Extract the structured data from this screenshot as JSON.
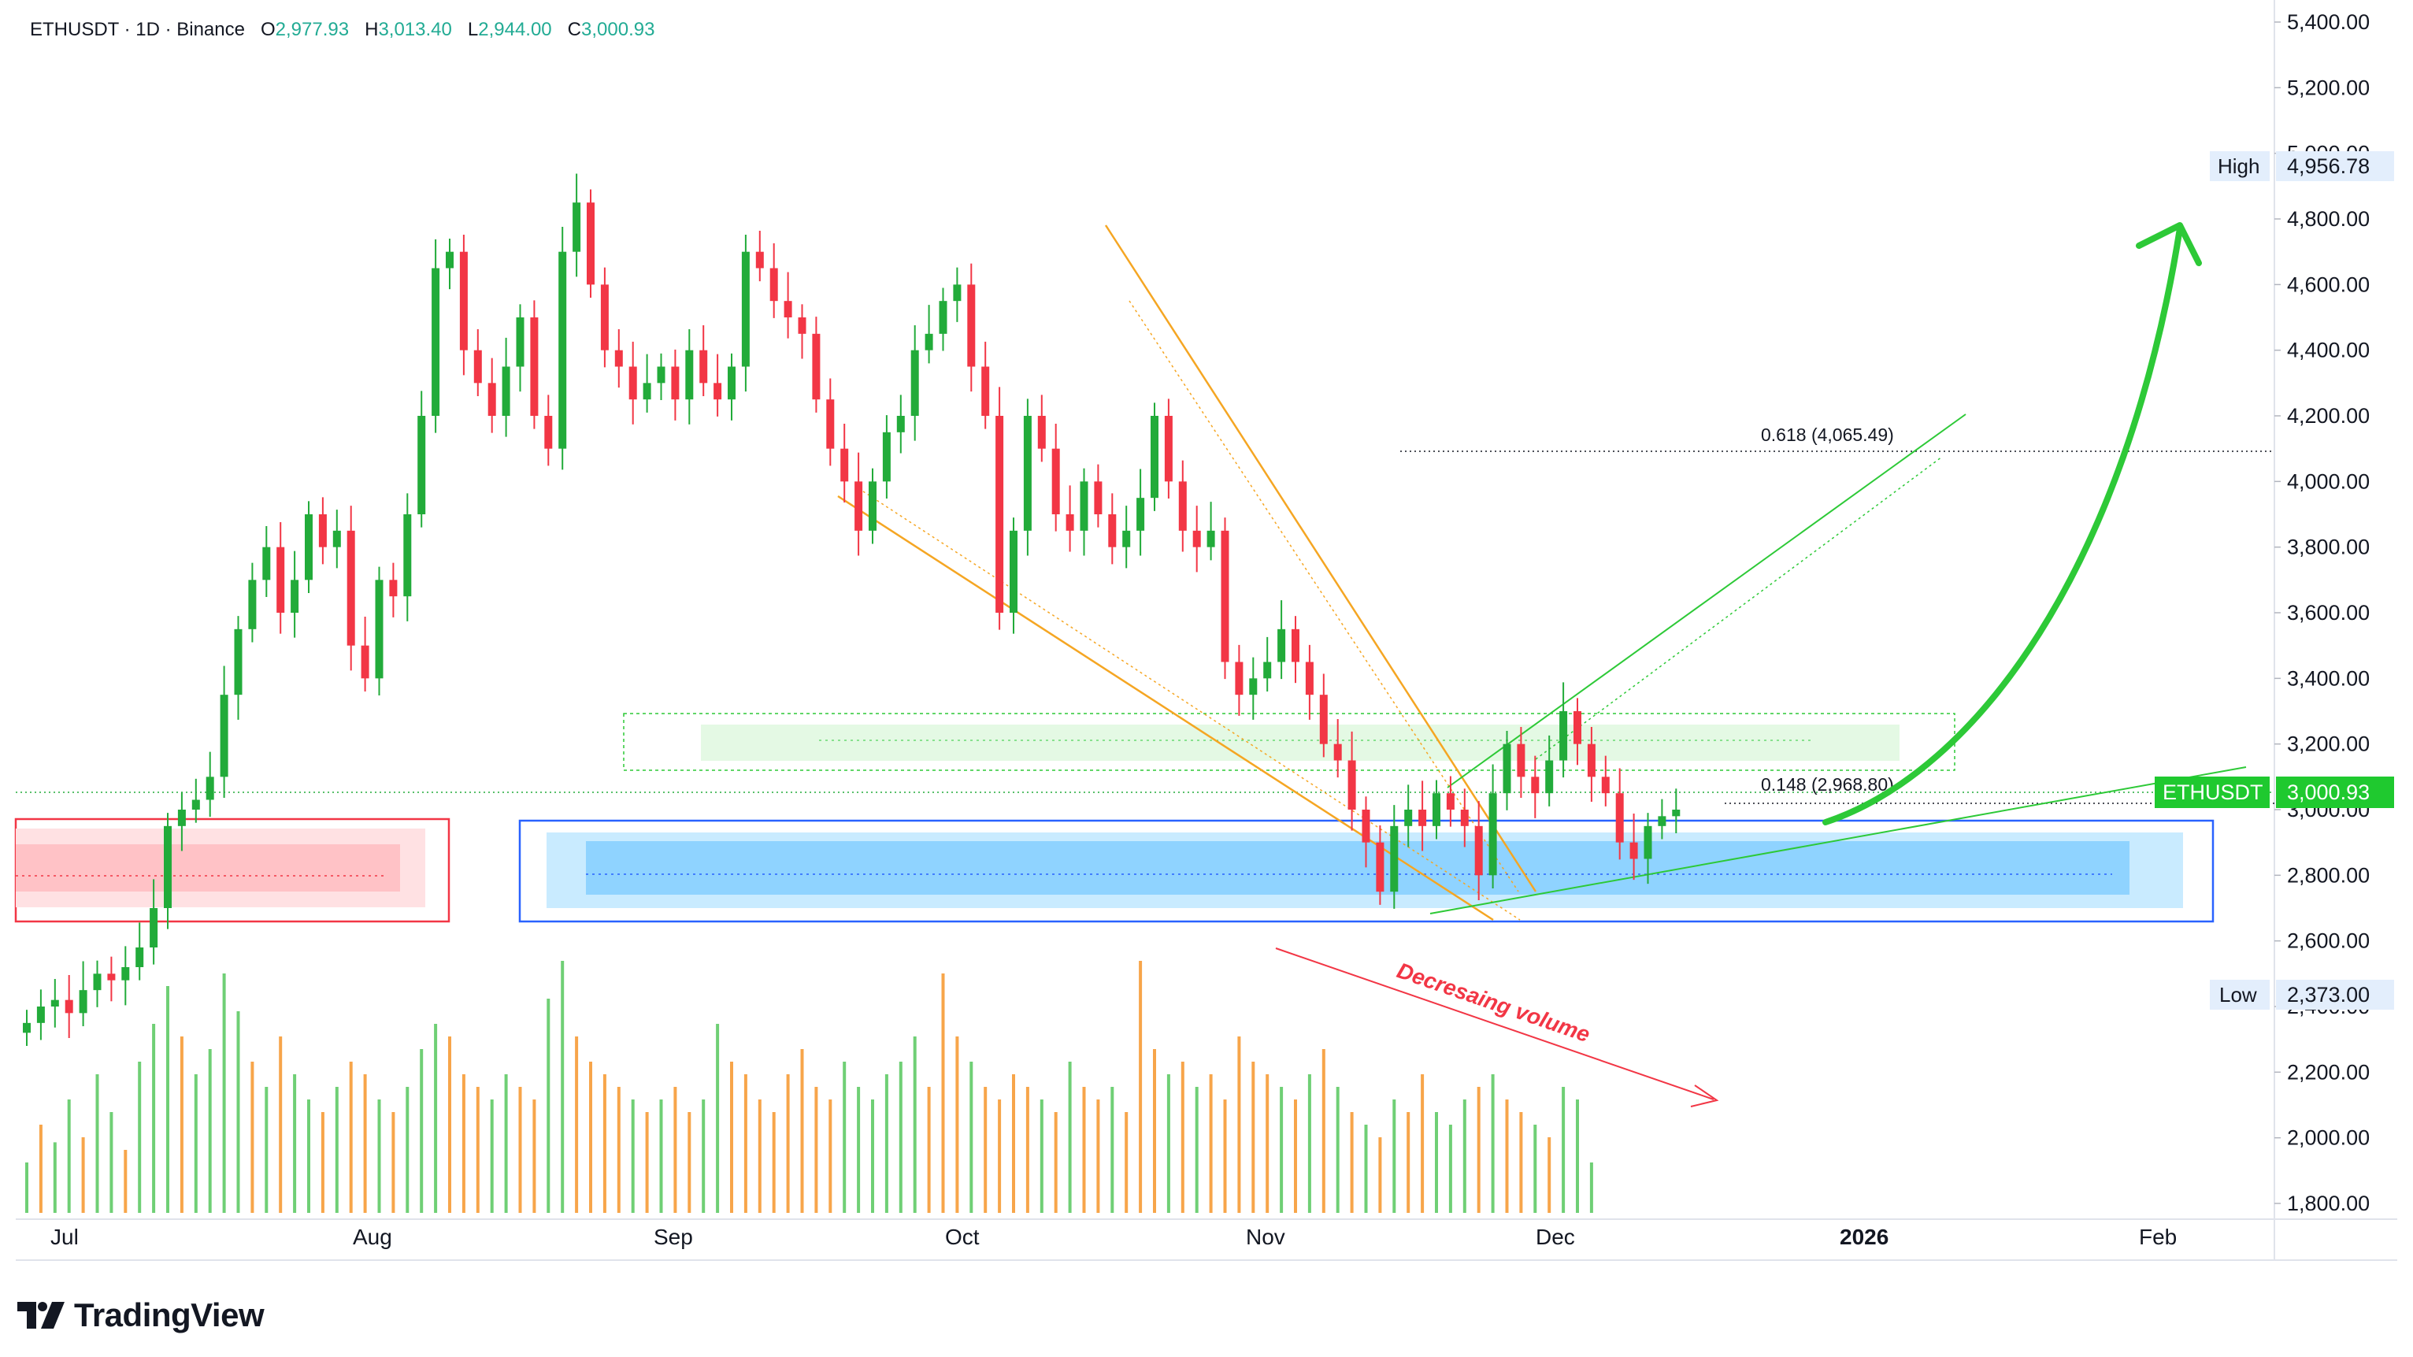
{
  "header": {
    "symbol": "ETHUSDT · 1D · Binance",
    "o_label": "O",
    "o_value": "2,977.93",
    "h_label": "H",
    "h_value": "3,013.40",
    "l_label": "L",
    "l_value": "2,944.00",
    "c_label": "C",
    "c_value": "3,000.93"
  },
  "branding": {
    "name": "TradingView"
  },
  "colors": {
    "up": "#22ab3a",
    "down": "#f23645",
    "vol_up": "#6fcf75",
    "vol_down": "#f7a54a",
    "accent_green": "#2dc937",
    "orange": "#f5a623",
    "blue_zone": "#8fd3ff",
    "red_zone": "#ffc9cc"
  },
  "chart_data": {
    "type": "candlestick",
    "symbol": "ETHUSDT",
    "timeframe": "1D",
    "exchange": "Binance",
    "y_axis": {
      "ticks": [
        "5,400.00",
        "5,200.00",
        "5,000.00",
        "4,800.00",
        "4,600.00",
        "4,400.00",
        "4,200.00",
        "4,000.00",
        "3,800.00",
        "3,600.00",
        "3,400.00",
        "3,200.00",
        "3,000.00",
        "2,800.00",
        "2,600.00",
        "2,400.00",
        "2,200.00",
        "2,000.00",
        "1,800.00"
      ],
      "range": [
        1680,
        5450
      ]
    },
    "x_axis": {
      "labels": [
        "Jul",
        "Aug",
        "Sep",
        "Oct",
        "Nov",
        "Dec",
        "2026",
        "Feb"
      ],
      "bold": [
        "2026"
      ]
    },
    "price_labels": {
      "high_label": "High",
      "high_value": "4,956.78",
      "low_label": "Low",
      "low_value": "2,373.00",
      "current_label": "ETHUSDT",
      "current_value": "3,000.93"
    },
    "fib_levels": [
      {
        "label": "0.618 (4,065.49)",
        "value": 4065.49
      },
      {
        "label": "0.148 (2,968.80)",
        "value": 2968.8
      }
    ],
    "annotation": {
      "text": "Decresaing volume"
    },
    "price_path": [
      2350,
      2400,
      2420,
      2380,
      2450,
      2500,
      2480,
      2520,
      2580,
      2700,
      2950,
      3000,
      3030,
      3100,
      3350,
      3550,
      3700,
      3800,
      3600,
      3700,
      3900,
      3800,
      3850,
      3500,
      3400,
      3700,
      3650,
      3900,
      4200,
      4650,
      4700,
      4400,
      4300,
      4200,
      4350,
      4500,
      4200,
      4100,
      4700,
      4850,
      4600,
      4400,
      4350,
      4250,
      4300,
      4350,
      4250,
      4400,
      4300,
      4250,
      4350,
      4700,
      4650,
      4550,
      4500,
      4450,
      4250,
      4100,
      4000,
      3850,
      4000,
      4150,
      4200,
      4400,
      4450,
      4550,
      4600,
      4350,
      4200,
      3600,
      3850,
      4200,
      4100,
      3900,
      3850,
      4000,
      3900,
      3800,
      3850,
      3950,
      4200,
      4000,
      3850,
      3800,
      3850,
      3450,
      3350,
      3400,
      3450,
      3550,
      3450,
      3350,
      3200,
      3150,
      3000,
      2900,
      2750,
      2950,
      3000,
      2950,
      3050,
      3000,
      2950,
      2800,
      3050,
      3200,
      3100,
      3050,
      3150,
      3300,
      3200,
      3100,
      3050,
      2900,
      2850,
      2950,
      2980,
      3000
    ],
    "volume": [
      {
        "v": 20,
        "up": true
      },
      {
        "v": 35,
        "up": false
      },
      {
        "v": 28,
        "up": true
      },
      {
        "v": 45,
        "up": true
      },
      {
        "v": 30,
        "up": false
      },
      {
        "v": 55,
        "up": true
      },
      {
        "v": 40,
        "up": true
      },
      {
        "v": 25,
        "up": false
      },
      {
        "v": 60,
        "up": true
      },
      {
        "v": 75,
        "up": true
      },
      {
        "v": 90,
        "up": true
      },
      {
        "v": 70,
        "up": false
      },
      {
        "v": 55,
        "up": true
      },
      {
        "v": 65,
        "up": true
      },
      {
        "v": 95,
        "up": true
      },
      {
        "v": 80,
        "up": true
      },
      {
        "v": 60,
        "up": false
      },
      {
        "v": 50,
        "up": true
      },
      {
        "v": 70,
        "up": false
      },
      {
        "v": 55,
        "up": true
      },
      {
        "v": 45,
        "up": true
      },
      {
        "v": 40,
        "up": false
      },
      {
        "v": 50,
        "up": true
      },
      {
        "v": 60,
        "up": false
      },
      {
        "v": 55,
        "up": false
      },
      {
        "v": 45,
        "up": true
      },
      {
        "v": 40,
        "up": false
      },
      {
        "v": 50,
        "up": true
      },
      {
        "v": 65,
        "up": true
      },
      {
        "v": 75,
        "up": true
      },
      {
        "v": 70,
        "up": false
      },
      {
        "v": 55,
        "up": false
      },
      {
        "v": 50,
        "up": false
      },
      {
        "v": 45,
        "up": true
      },
      {
        "v": 55,
        "up": true
      },
      {
        "v": 50,
        "up": false
      },
      {
        "v": 45,
        "up": false
      },
      {
        "v": 85,
        "up": true
      },
      {
        "v": 100,
        "up": true
      },
      {
        "v": 70,
        "up": false
      },
      {
        "v": 60,
        "up": false
      },
      {
        "v": 55,
        "up": false
      },
      {
        "v": 50,
        "up": false
      },
      {
        "v": 45,
        "up": true
      },
      {
        "v": 40,
        "up": false
      },
      {
        "v": 45,
        "up": true
      },
      {
        "v": 50,
        "up": false
      },
      {
        "v": 40,
        "up": false
      },
      {
        "v": 45,
        "up": true
      },
      {
        "v": 75,
        "up": true
      },
      {
        "v": 60,
        "up": false
      },
      {
        "v": 55,
        "up": false
      },
      {
        "v": 45,
        "up": false
      },
      {
        "v": 40,
        "up": false
      },
      {
        "v": 55,
        "up": false
      },
      {
        "v": 65,
        "up": false
      },
      {
        "v": 50,
        "up": false
      },
      {
        "v": 45,
        "up": false
      },
      {
        "v": 60,
        "up": true
      },
      {
        "v": 50,
        "up": true
      },
      {
        "v": 45,
        "up": true
      },
      {
        "v": 55,
        "up": true
      },
      {
        "v": 60,
        "up": true
      },
      {
        "v": 70,
        "up": true
      },
      {
        "v": 50,
        "up": false
      },
      {
        "v": 95,
        "up": false
      },
      {
        "v": 70,
        "up": false
      },
      {
        "v": 60,
        "up": true
      },
      {
        "v": 50,
        "up": false
      },
      {
        "v": 45,
        "up": false
      },
      {
        "v": 55,
        "up": false
      },
      {
        "v": 50,
        "up": false
      },
      {
        "v": 45,
        "up": true
      },
      {
        "v": 40,
        "up": false
      },
      {
        "v": 60,
        "up": true
      },
      {
        "v": 50,
        "up": false
      },
      {
        "v": 45,
        "up": false
      },
      {
        "v": 50,
        "up": true
      },
      {
        "v": 40,
        "up": false
      },
      {
        "v": 100,
        "up": false
      },
      {
        "v": 65,
        "up": false
      },
      {
        "v": 55,
        "up": true
      },
      {
        "v": 60,
        "up": false
      },
      {
        "v": 50,
        "up": true
      },
      {
        "v": 55,
        "up": false
      },
      {
        "v": 45,
        "up": false
      },
      {
        "v": 70,
        "up": false
      },
      {
        "v": 60,
        "up": false
      },
      {
        "v": 55,
        "up": false
      },
      {
        "v": 50,
        "up": true
      },
      {
        "v": 45,
        "up": false
      },
      {
        "v": 55,
        "up": true
      },
      {
        "v": 65,
        "up": false
      },
      {
        "v": 50,
        "up": true
      },
      {
        "v": 40,
        "up": false
      },
      {
        "v": 35,
        "up": true
      },
      {
        "v": 30,
        "up": false
      },
      {
        "v": 45,
        "up": true
      },
      {
        "v": 40,
        "up": false
      },
      {
        "v": 55,
        "up": false
      },
      {
        "v": 40,
        "up": true
      },
      {
        "v": 35,
        "up": true
      },
      {
        "v": 45,
        "up": true
      },
      {
        "v": 50,
        "up": false
      },
      {
        "v": 55,
        "up": true
      },
      {
        "v": 45,
        "up": false
      },
      {
        "v": 40,
        "up": false
      },
      {
        "v": 35,
        "up": true
      },
      {
        "v": 30,
        "up": false
      },
      {
        "v": 50,
        "up": true
      },
      {
        "v": 45,
        "up": true
      },
      {
        "v": 20,
        "up": true
      }
    ]
  }
}
